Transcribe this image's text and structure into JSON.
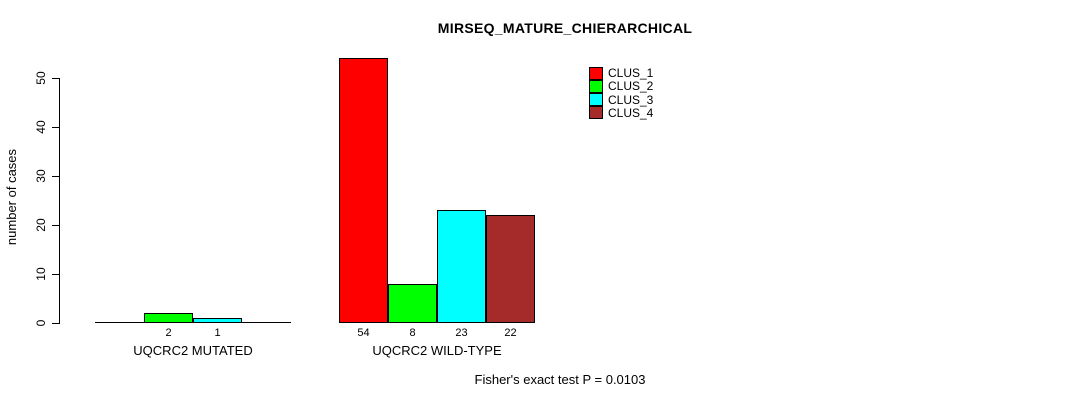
{
  "title": "MIRSEQ_MATURE_CHIERARCHICAL",
  "footnote": "Fisher's exact test P = 0.0103",
  "colors": {
    "background": "#ffffff",
    "axis": "#000000",
    "text": "#000000"
  },
  "chart_data": {
    "type": "bar",
    "title": "MIRSEQ_MATURE_CHIERARCHICAL",
    "xlabel": "",
    "ylabel": "number of cases",
    "ylim": [
      0,
      50
    ],
    "yticks": [
      0,
      10,
      20,
      30,
      40,
      50
    ],
    "grid": false,
    "legend_position": "top-right",
    "categories": [
      "UQCRC2 MUTATED",
      "UQCRC2 WILD-TYPE"
    ],
    "series": [
      {
        "name": "CLUS_1",
        "color": "#ff0000",
        "values": [
          0,
          54
        ]
      },
      {
        "name": "CLUS_2",
        "color": "#00ff00",
        "values": [
          2,
          8
        ]
      },
      {
        "name": "CLUS_3",
        "color": "#00ffff",
        "values": [
          1,
          23
        ]
      },
      {
        "name": "CLUS_4",
        "color": "#a52a2a",
        "values": [
          0,
          22
        ]
      }
    ],
    "annotation": "Fisher's exact test P = 0.0103"
  }
}
